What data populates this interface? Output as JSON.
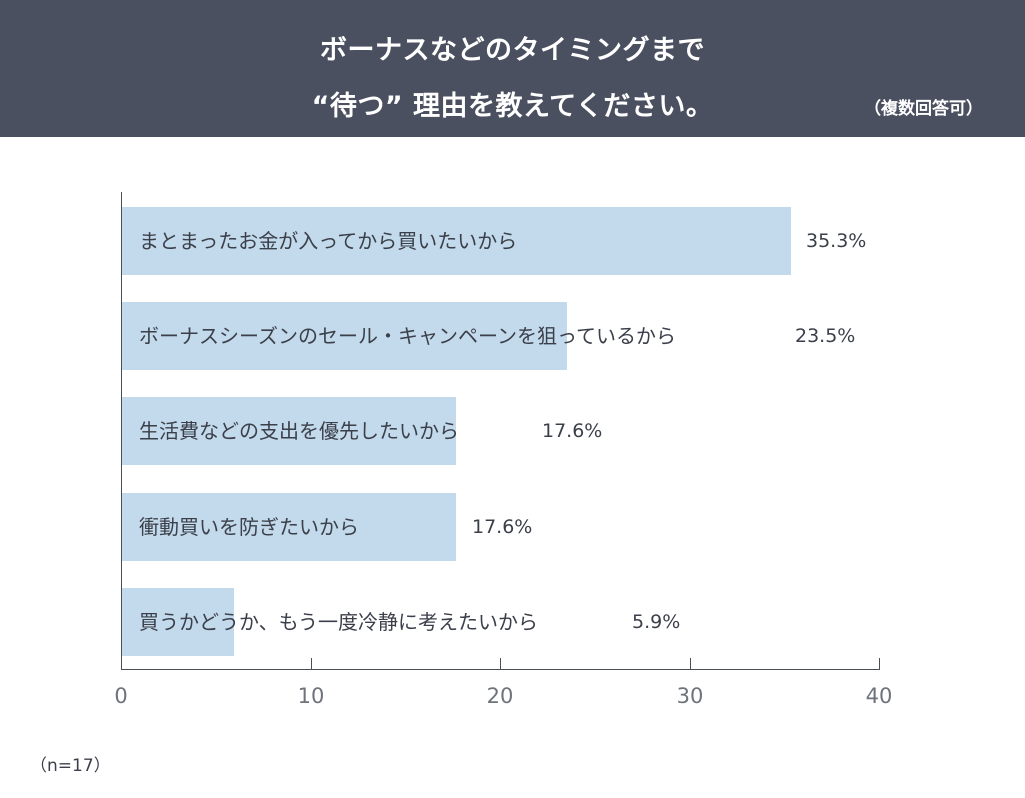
{
  "header": {
    "title_line1": "ボーナスなどのタイミングまで",
    "title_line2": "“待つ” 理由を教えてください。",
    "note": "（複数回答可）"
  },
  "footer": {
    "sample_size": "（n=17）"
  },
  "colors": {
    "header_bg": "#4b5060",
    "bar": "#c2daeb",
    "axis": "#4a4e57",
    "text": "#3b3f4a"
  },
  "chart_data": {
    "type": "bar",
    "orientation": "horizontal",
    "title": "ボーナスなどのタイミングまで“待つ”理由を教えてください。（複数回答可）",
    "xlabel": "",
    "ylabel": "",
    "xlim": [
      0,
      40
    ],
    "xticks": [
      "0",
      "10",
      "20",
      "30",
      "40"
    ],
    "grid": false,
    "legend": null,
    "categories": [
      "まとまったお金が入ってから買いたいから",
      "ボーナスシーズンのセール・キャンペーンを狙っているから",
      "生活費などの支出を優先したいから",
      "衝動買いを防ぎたいから",
      "買うかどうか、もう一度冷静に考えたいから"
    ],
    "values": [
      35.3,
      23.5,
      17.6,
      17.6,
      5.9
    ],
    "value_labels": [
      "35.3%",
      "23.5%",
      "17.6%",
      "17.6%",
      "5.9%"
    ],
    "unit": "%",
    "n": 17
  }
}
